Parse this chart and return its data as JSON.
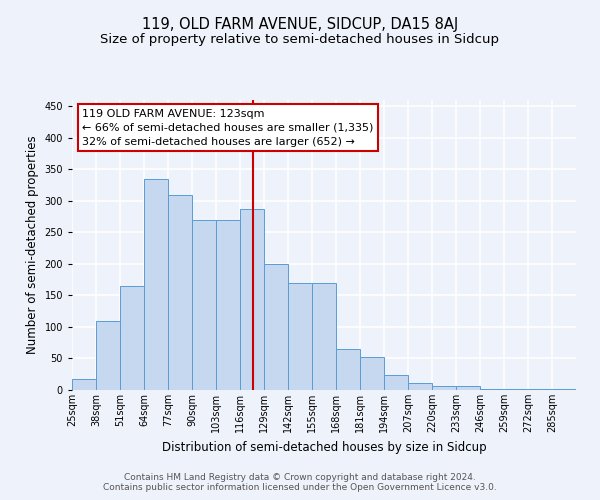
{
  "title": "119, OLD FARM AVENUE, SIDCUP, DA15 8AJ",
  "subtitle": "Size of property relative to semi-detached houses in Sidcup",
  "xlabel": "Distribution of semi-detached houses by size in Sidcup",
  "ylabel": "Number of semi-detached properties",
  "bin_labels": [
    "25sqm",
    "38sqm",
    "51sqm",
    "64sqm",
    "77sqm",
    "90sqm",
    "103sqm",
    "116sqm",
    "129sqm",
    "142sqm",
    "155sqm",
    "168sqm",
    "181sqm",
    "194sqm",
    "207sqm",
    "220sqm",
    "233sqm",
    "246sqm",
    "259sqm",
    "272sqm",
    "285sqm"
  ],
  "bin_left_edges": [
    25,
    38,
    51,
    64,
    77,
    90,
    103,
    116,
    129,
    142,
    155,
    168,
    181,
    194,
    207,
    220,
    233,
    246,
    259,
    272,
    285
  ],
  "bin_width": 13,
  "bar_heights": [
    17,
    109,
    165,
    335,
    310,
    270,
    270,
    287,
    200,
    170,
    170,
    65,
    53,
    24,
    11,
    7,
    7,
    2,
    2,
    1,
    1
  ],
  "bar_color": "#c5d8f0",
  "bar_edge_color": "#5b9bd5",
  "property_value": 123,
  "vline_color": "#cc0000",
  "annotation_line1": "119 OLD FARM AVENUE: 123sqm",
  "annotation_line2": "← 66% of semi-detached houses are smaller (1,335)",
  "annotation_line3": "32% of semi-detached houses are larger (652) →",
  "annotation_box_color": "#ffffff",
  "annotation_box_edge_color": "#cc0000",
  "ylim": [
    0,
    460
  ],
  "yticks": [
    0,
    50,
    100,
    150,
    200,
    250,
    300,
    350,
    400,
    450
  ],
  "footer_text": "Contains HM Land Registry data © Crown copyright and database right 2024.\nContains public sector information licensed under the Open Government Licence v3.0.",
  "background_color": "#eef2fa",
  "grid_color": "#ffffff",
  "title_fontsize": 10.5,
  "subtitle_fontsize": 9.5,
  "axis_label_fontsize": 8.5,
  "tick_fontsize": 7,
  "footer_fontsize": 6.5,
  "annotation_fontsize": 8
}
